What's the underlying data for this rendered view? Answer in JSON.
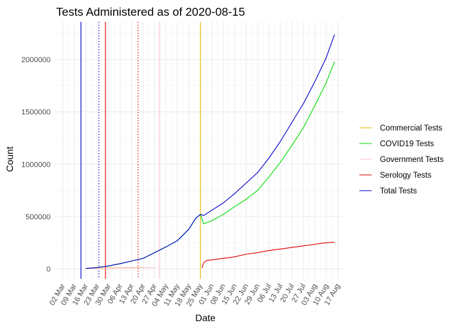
{
  "chart_data": {
    "type": "line",
    "title": "Tests Administered as of 2020-08-15",
    "xlabel": "Date",
    "ylabel": "Count",
    "x_range": [
      "2020-02-26",
      "2020-08-21"
    ],
    "ylim": [
      -95000,
      2360000
    ],
    "y_ticks": [
      0,
      500000,
      1000000,
      1500000,
      2000000
    ],
    "y_tick_labels": [
      "0",
      "500000",
      "1000000",
      "1500000",
      "2000000"
    ],
    "x_ticks": [
      "2020-03-02",
      "2020-03-09",
      "2020-03-16",
      "2020-03-23",
      "2020-03-30",
      "2020-04-06",
      "2020-04-13",
      "2020-04-20",
      "2020-04-27",
      "2020-05-04",
      "2020-05-11",
      "2020-05-18",
      "2020-05-25",
      "2020-06-01",
      "2020-06-08",
      "2020-06-15",
      "2020-06-22",
      "2020-06-29",
      "2020-07-06",
      "2020-07-13",
      "2020-07-20",
      "2020-07-27",
      "2020-08-03",
      "2020-08-10",
      "2020-08-17"
    ],
    "x_tick_labels": [
      "02 Mar",
      "09 Mar",
      "16 Mar",
      "23 Mar",
      "30 Mar",
      "06 Apr",
      "13 Apr",
      "20 Apr",
      "27 Apr",
      "04 May",
      "11 May",
      "18 May",
      "25 May",
      "01 Jun",
      "08 Jun",
      "15 Jun",
      "22 Jun",
      "29 Jun",
      "06 Jul",
      "13 Jul",
      "20 Jul",
      "27 Jul",
      "03 Aug",
      "10 Aug",
      "17 Aug"
    ],
    "grid": true,
    "legend_position": "right",
    "series": [
      {
        "name": "Commercial Tests",
        "color": "#E6B800",
        "points": [
          [
            "2020-03-16",
            2000
          ],
          [
            "2020-03-23",
            4000
          ],
          [
            "2020-03-30",
            8000
          ],
          [
            "2020-04-06",
            11000
          ],
          [
            "2020-04-13",
            13000
          ],
          [
            "2020-04-20",
            14000
          ]
        ]
      },
      {
        "name": "COVID19 Tests",
        "color": "#00DD00",
        "points": [
          [
            "2020-03-16",
            4000
          ],
          [
            "2020-03-23",
            12000
          ],
          [
            "2020-03-30",
            28000
          ],
          [
            "2020-04-06",
            50000
          ],
          [
            "2020-04-13",
            75000
          ],
          [
            "2020-04-20",
            100000
          ],
          [
            "2020-04-27",
            155000
          ],
          [
            "2020-05-04",
            210000
          ],
          [
            "2020-05-11",
            270000
          ],
          [
            "2020-05-18",
            380000
          ],
          [
            "2020-05-22",
            480000
          ],
          [
            "2020-05-25",
            520000
          ],
          [
            "2020-05-27",
            430000
          ],
          [
            "2020-06-01",
            460000
          ],
          [
            "2020-06-08",
            520000
          ],
          [
            "2020-06-15",
            595000
          ],
          [
            "2020-06-22",
            665000
          ],
          [
            "2020-06-29",
            750000
          ],
          [
            "2020-07-06",
            880000
          ],
          [
            "2020-07-13",
            1020000
          ],
          [
            "2020-07-20",
            1180000
          ],
          [
            "2020-07-27",
            1350000
          ],
          [
            "2020-08-03",
            1560000
          ],
          [
            "2020-08-10",
            1780000
          ],
          [
            "2020-08-15",
            1980000
          ]
        ]
      },
      {
        "name": "Government Tests",
        "color": "#FFC0CB",
        "points": [
          [
            "2020-03-16",
            0
          ],
          [
            "2020-03-23",
            3000
          ],
          [
            "2020-03-30",
            6000
          ],
          [
            "2020-04-06",
            9000
          ],
          [
            "2020-04-13",
            11000
          ],
          [
            "2020-04-20",
            12000
          ],
          [
            "2020-04-27",
            13000
          ]
        ]
      },
      {
        "name": "Serology Tests",
        "color": "#DD0000",
        "points": [
          [
            "2020-05-26",
            10000
          ],
          [
            "2020-05-27",
            60000
          ],
          [
            "2020-05-29",
            80000
          ],
          [
            "2020-06-08",
            100000
          ],
          [
            "2020-06-15",
            115000
          ],
          [
            "2020-06-22",
            140000
          ],
          [
            "2020-06-29",
            155000
          ],
          [
            "2020-07-06",
            175000
          ],
          [
            "2020-07-13",
            190000
          ],
          [
            "2020-07-20",
            205000
          ],
          [
            "2020-07-27",
            220000
          ],
          [
            "2020-08-03",
            235000
          ],
          [
            "2020-08-10",
            250000
          ],
          [
            "2020-08-15",
            255000
          ]
        ]
      },
      {
        "name": "Total Tests",
        "color": "#0000CC",
        "points": [
          [
            "2020-03-16",
            4000
          ],
          [
            "2020-03-23",
            12000
          ],
          [
            "2020-03-30",
            28000
          ],
          [
            "2020-04-06",
            50000
          ],
          [
            "2020-04-13",
            75000
          ],
          [
            "2020-04-20",
            100000
          ],
          [
            "2020-04-27",
            155000
          ],
          [
            "2020-05-04",
            210000
          ],
          [
            "2020-05-11",
            270000
          ],
          [
            "2020-05-18",
            380000
          ],
          [
            "2020-05-22",
            480000
          ],
          [
            "2020-05-25",
            520000
          ],
          [
            "2020-05-27",
            510000
          ],
          [
            "2020-06-01",
            560000
          ],
          [
            "2020-06-08",
            630000
          ],
          [
            "2020-06-15",
            720000
          ],
          [
            "2020-06-22",
            820000
          ],
          [
            "2020-06-29",
            920000
          ],
          [
            "2020-07-06",
            1060000
          ],
          [
            "2020-07-13",
            1220000
          ],
          [
            "2020-07-20",
            1400000
          ],
          [
            "2020-07-27",
            1580000
          ],
          [
            "2020-08-03",
            1790000
          ],
          [
            "2020-08-10",
            2020000
          ],
          [
            "2020-08-15",
            2240000
          ]
        ]
      }
    ],
    "reference_lines": [
      {
        "date": "2020-03-13",
        "color": "#0000CC",
        "style": "solid"
      },
      {
        "date": "2020-03-24",
        "color": "#0000CC",
        "style": "dotted"
      },
      {
        "date": "2020-03-28",
        "color": "#DD0000",
        "style": "solid"
      },
      {
        "date": "2020-04-17",
        "color": "#DD0000",
        "style": "dotted"
      },
      {
        "date": "2020-04-30",
        "color": "#FFC0CB",
        "style": "solid"
      },
      {
        "date": "2020-05-25",
        "color": "#E6B800",
        "style": "solid"
      }
    ]
  }
}
